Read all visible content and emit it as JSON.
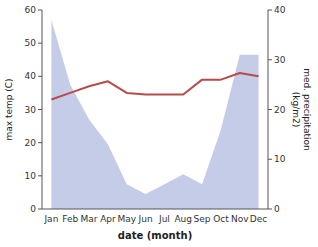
{
  "chart_data": {
    "type": "line",
    "categories": [
      "Jan",
      "Feb",
      "Mar",
      "Apr",
      "May",
      "Jun",
      "Jul",
      "Aug",
      "Sep",
      "Oct",
      "Nov",
      "Dec"
    ],
    "series": [
      {
        "type": "area",
        "axis": "y2",
        "color": "#c5cce8",
        "values": [
          38,
          25,
          18,
          13,
          5,
          3,
          5,
          7,
          5,
          16,
          31,
          31
        ]
      },
      {
        "type": "line",
        "color": "#b94a4a",
        "values": [
          33,
          35,
          37,
          38.5,
          35,
          34.5,
          34.5,
          34.5,
          39,
          39,
          41,
          40
        ]
      }
    ],
    "xlabel": "date (month)",
    "ylabel": "max temp (C)",
    "y2label": "med. precipitation\n(kg/m2)",
    "ylim": [
      0,
      60
    ],
    "yticks": [
      0,
      10,
      20,
      30,
      40,
      50,
      60
    ],
    "y2lim": [
      0,
      40
    ],
    "y2ticks": [
      0,
      10,
      20,
      30,
      40
    ],
    "grid": false
  }
}
